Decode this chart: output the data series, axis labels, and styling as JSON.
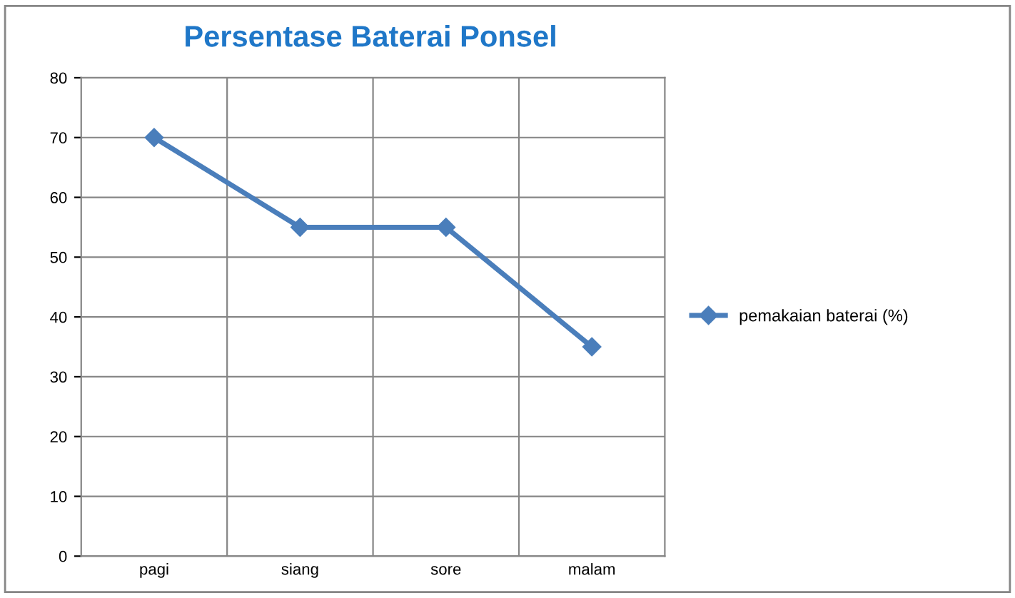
{
  "chart_data": {
    "type": "line",
    "title": "Persentase Baterai Ponsel",
    "categories": [
      "pagi",
      "siang",
      "sore",
      "malam"
    ],
    "series": [
      {
        "name": "pemakaian baterai (%)",
        "color": "#4a7ebb",
        "values": [
          70,
          55,
          55,
          35
        ]
      }
    ],
    "ylim": [
      0,
      80
    ],
    "yticks": [
      0,
      10,
      20,
      30,
      40,
      50,
      60,
      70,
      80
    ],
    "grid": true,
    "legend": "right",
    "marker": "diamond",
    "line_style": "solid"
  }
}
